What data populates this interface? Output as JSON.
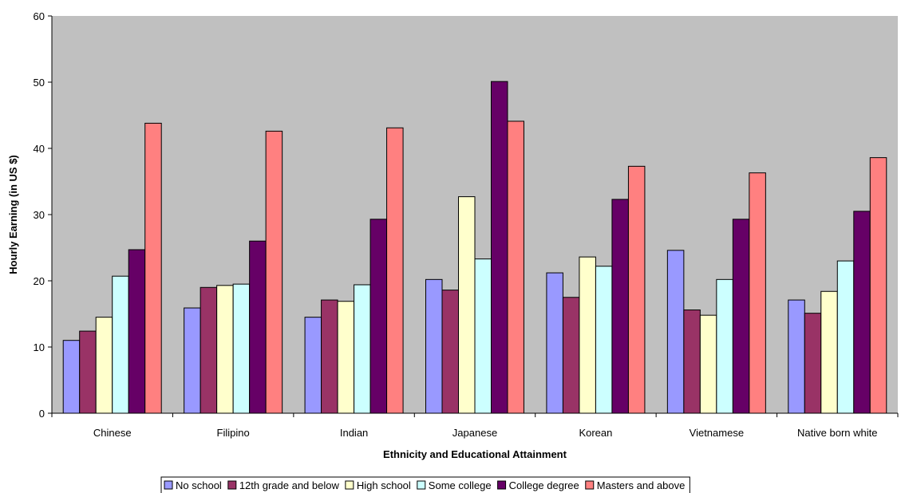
{
  "chart_data": {
    "type": "bar",
    "title": "",
    "xlabel": "Ethnicity and Educational Attainment",
    "ylabel": "Hourly Earning (in US $)",
    "ylim": [
      0,
      60
    ],
    "yticks": [
      "0",
      "10",
      "20",
      "30",
      "40",
      "50",
      "60"
    ],
    "grid": false,
    "plot_background": "#C0C0C0",
    "legend_position": "bottom",
    "categories": [
      "Chinese",
      "Filipino",
      "Indian",
      "Japanese",
      "Korean",
      "Vietnamese",
      "Native born white"
    ],
    "series": [
      {
        "name": "No school",
        "color": "#9999FF",
        "values": [
          11.0,
          15.9,
          14.5,
          20.2,
          21.2,
          24.6,
          17.1
        ]
      },
      {
        "name": "12th grade and below",
        "color": "#993366",
        "values": [
          12.4,
          19.0,
          17.1,
          18.6,
          17.5,
          15.6,
          15.1
        ]
      },
      {
        "name": "High school",
        "color": "#FFFFCC",
        "values": [
          14.5,
          19.3,
          16.9,
          32.7,
          23.6,
          14.8,
          18.4
        ]
      },
      {
        "name": "Some college",
        "color": "#CCFFFF",
        "values": [
          20.7,
          19.5,
          19.4,
          23.3,
          22.2,
          20.2,
          23.0
        ]
      },
      {
        "name": "College degree",
        "color": "#660066",
        "values": [
          24.7,
          26.0,
          29.3,
          50.1,
          32.3,
          29.3,
          30.5
        ]
      },
      {
        "name": "Masters and above",
        "color": "#FF8080",
        "values": [
          43.8,
          42.6,
          43.1,
          44.1,
          37.3,
          36.3,
          38.6
        ]
      }
    ]
  }
}
